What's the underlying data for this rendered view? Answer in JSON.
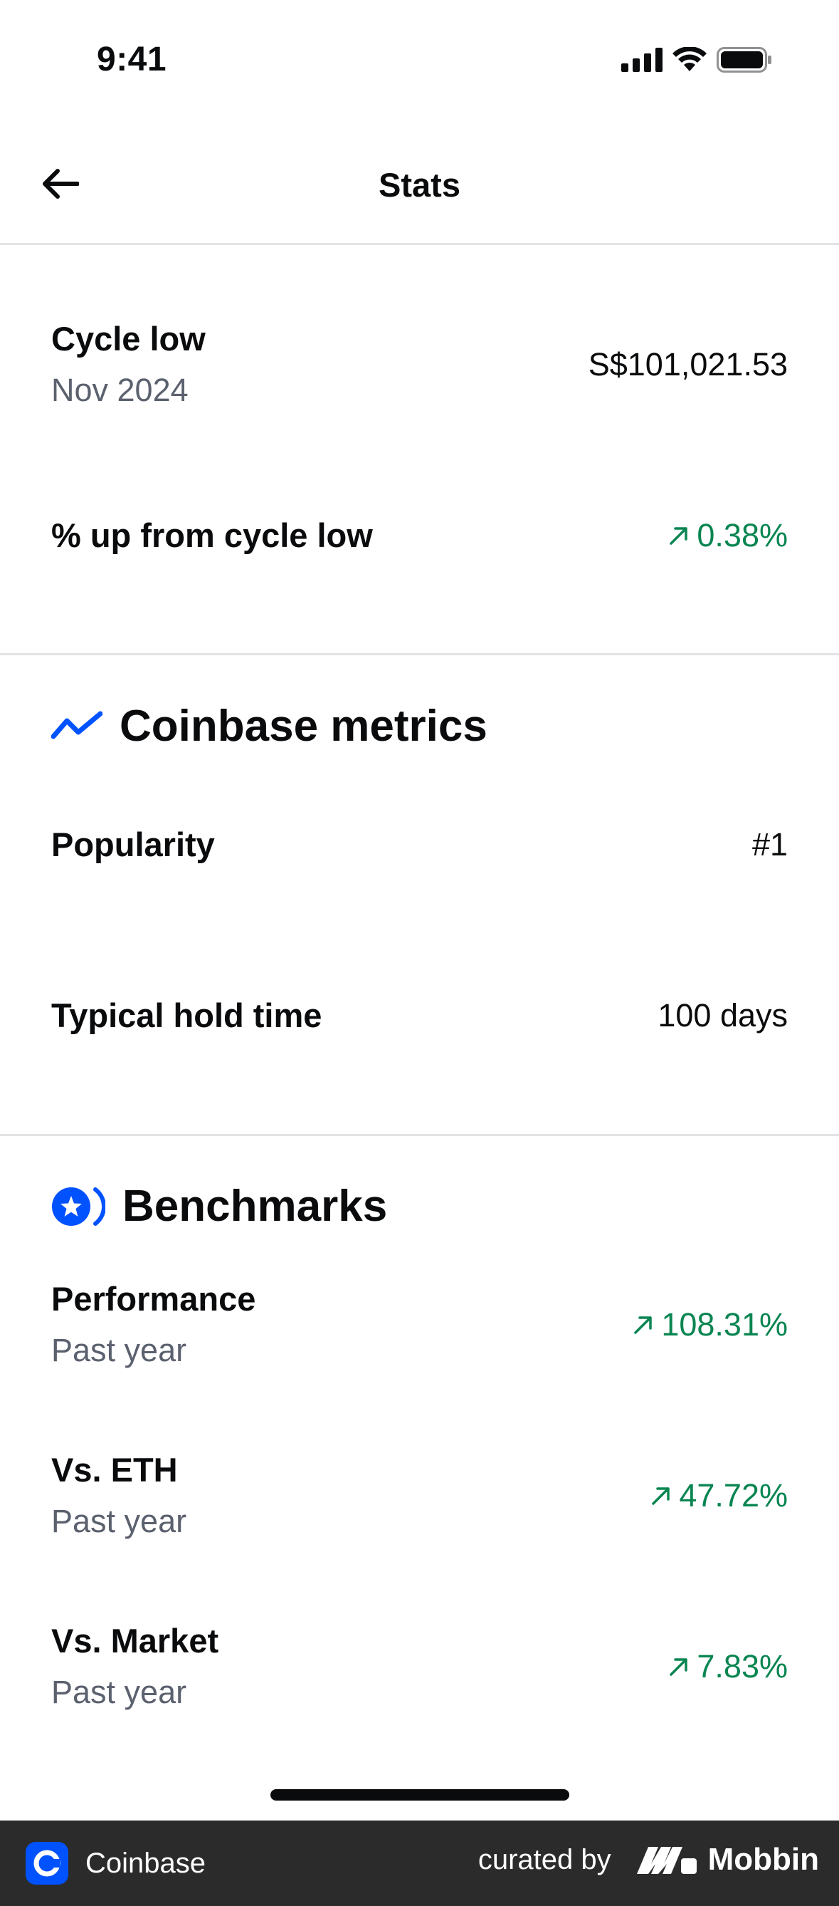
{
  "status_bar": {
    "time": "9:41",
    "icons": [
      "signal-icon",
      "wifi-icon",
      "battery-icon"
    ]
  },
  "header": {
    "title": "Stats",
    "back_icon": "arrow-left-icon"
  },
  "cycle": {
    "cycle_low_label": "Cycle low",
    "cycle_low_date": "Nov 2024",
    "cycle_low_value": "S$101,021.53",
    "up_label": "% up from cycle low",
    "up_value": "0.38%"
  },
  "coinbase_metrics": {
    "title": "Coinbase metrics",
    "icon": "trend-line-icon",
    "popularity_label": "Popularity",
    "popularity_value": "#1",
    "hold_label": "Typical hold time",
    "hold_value": "100 days"
  },
  "benchmarks": {
    "title": "Benchmarks",
    "icon": "benchmark-star-icon",
    "items": [
      {
        "label": "Performance",
        "sub": "Past year",
        "value": "108.31%"
      },
      {
        "label": "Vs. ETH",
        "sub": "Past year",
        "value": "47.72%"
      },
      {
        "label": "Vs. Market",
        "sub": "Past year",
        "value": "7.83%"
      }
    ]
  },
  "footer": {
    "app_name": "Coinbase",
    "curated_by": "curated by",
    "brand": "Mobbin"
  },
  "colors": {
    "positive": "#098551",
    "accent": "#0052ff",
    "muted": "#5b616e"
  }
}
